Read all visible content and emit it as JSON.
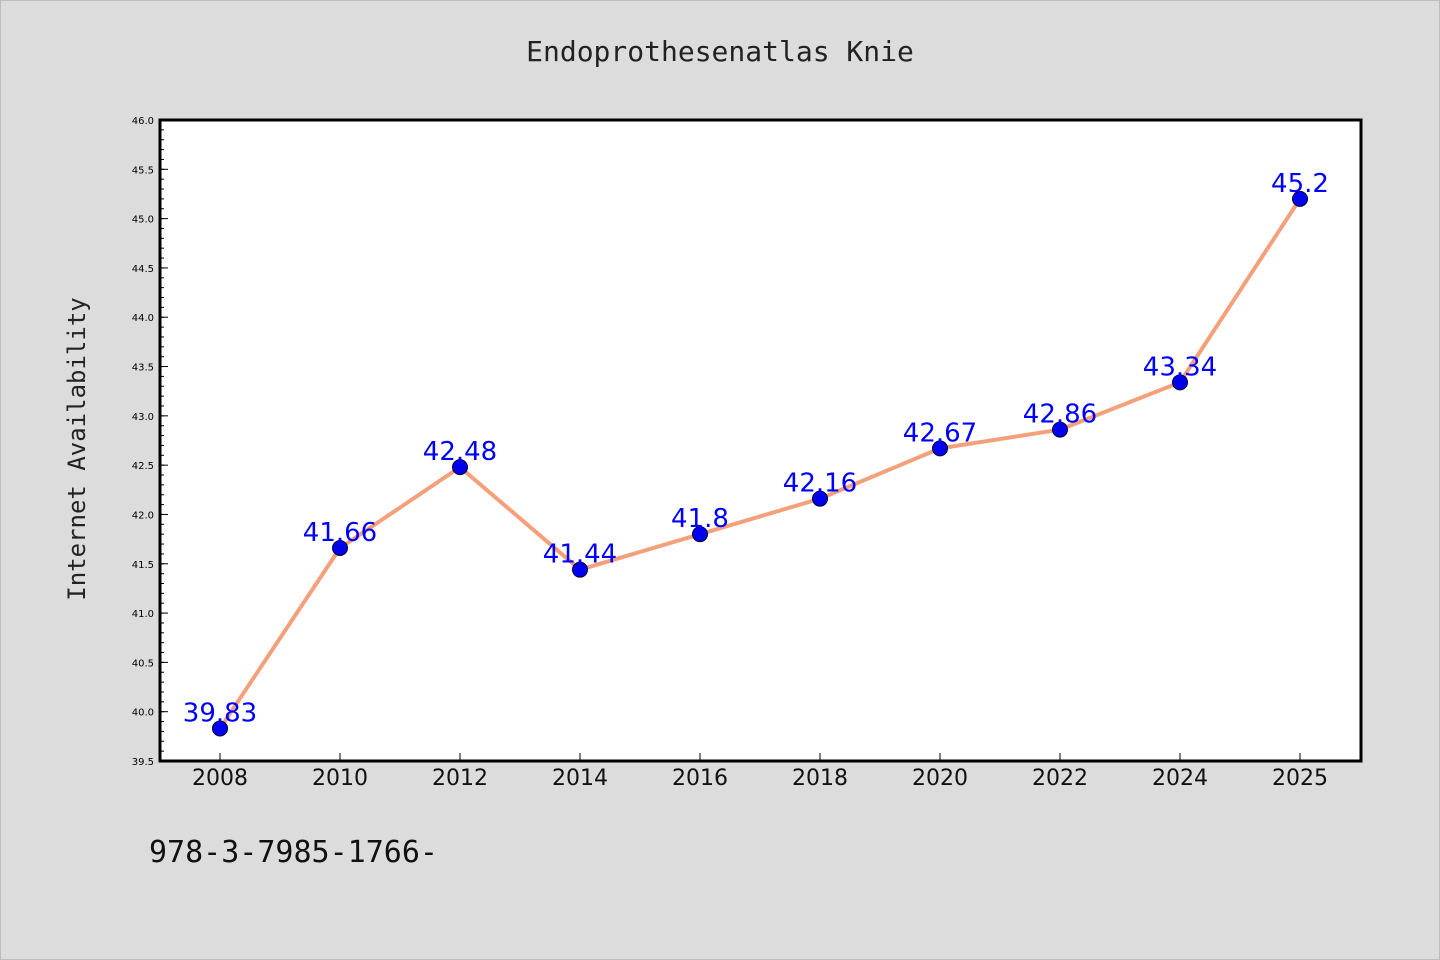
{
  "chart_data": {
    "type": "line",
    "title": "Endoprothesenatlas Knie",
    "xlabel": "",
    "ylabel": "Internet Availability",
    "x": [
      "2008",
      "2010",
      "2012",
      "2014",
      "2016",
      "2018",
      "2020",
      "2022",
      "2024",
      "2025"
    ],
    "series": [
      {
        "values": [
          39.83,
          41.66,
          42.48,
          41.44,
          41.8,
          42.16,
          42.67,
          42.86,
          43.34,
          45.2
        ]
      }
    ],
    "data_labels": [
      "39.83",
      "41.66",
      "42.48",
      "41.44",
      "41.8",
      "42.16",
      "42.67",
      "42.86",
      "43.34",
      "45.2"
    ],
    "ylim": [
      39.5,
      46.0
    ],
    "yticks": [
      "39.5",
      "40.0",
      "40.5",
      "41.0",
      "41.5",
      "42.0",
      "42.5",
      "43.0",
      "43.5",
      "44.0",
      "44.5",
      "45.0",
      "45.5",
      "46.0"
    ],
    "grid": false,
    "legend": "none",
    "colors": {
      "line": "#f4a07a",
      "marker": "#0000ee",
      "label": "#0000ff",
      "plot_bg": "#ffffff",
      "page_bg": "#dcdcdc"
    }
  },
  "footnote": "978-3-7985-1766-"
}
